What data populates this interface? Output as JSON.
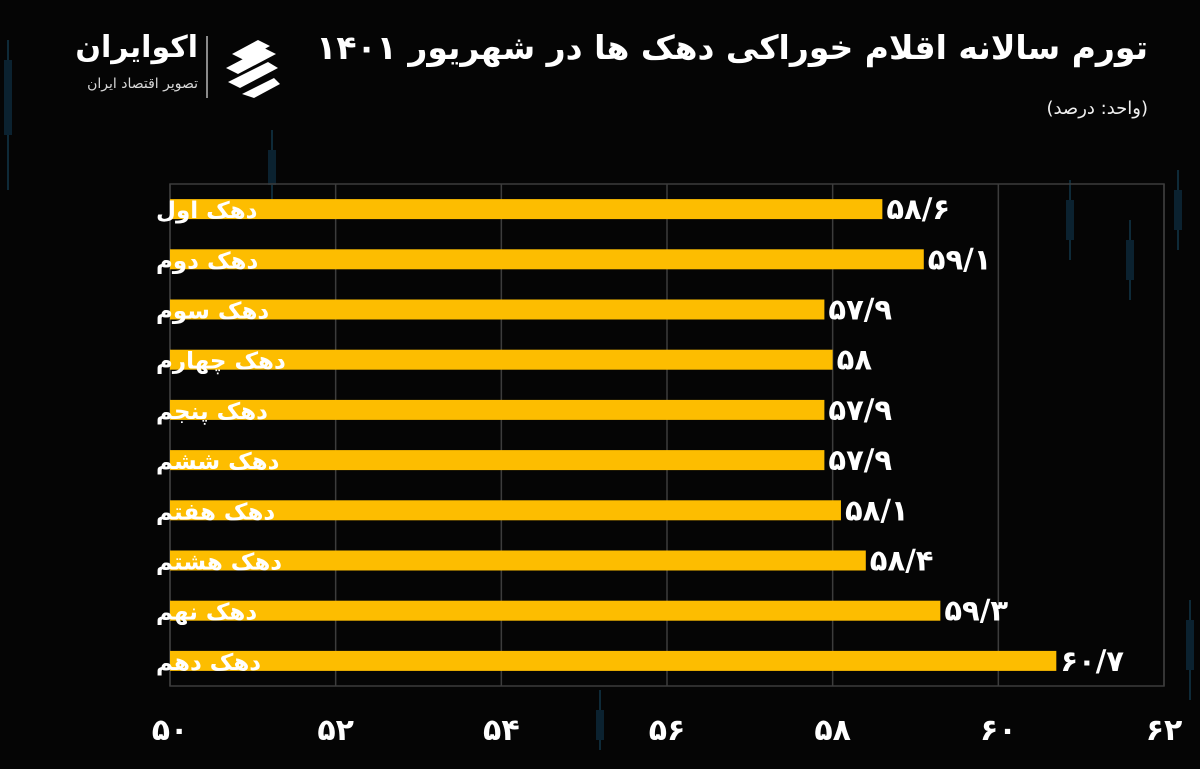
{
  "header": {
    "title": "تورم سالانه اقلام خوراکی دهک ها در شهریور ۱۴۰۱",
    "unit": "(واحد: درصد)"
  },
  "brand": {
    "name": "اکوایران",
    "tagline": "تصویر اقتصاد ایران",
    "logo_icon": "ekoiran-logo-icon"
  },
  "colors": {
    "background": "#050505",
    "bar": "#fdbd00",
    "grid": "#3c3c3c",
    "text": "#ffffff"
  },
  "chart_data": {
    "type": "bar",
    "orientation": "horizontal",
    "title": "تورم سالانه اقلام خوراکی دهک ها در شهریور ۱۴۰۱",
    "xlabel": "",
    "ylabel": "",
    "xlim": [
      50,
      62
    ],
    "xticks": [
      50,
      52,
      54,
      56,
      58,
      60,
      62
    ],
    "xtick_labels": [
      "۵۰",
      "۵۲",
      "۵۴",
      "۵۶",
      "۵۸",
      "۶۰",
      "۶۲"
    ],
    "grid": true,
    "categories": [
      "دهک اول",
      "دهک دوم",
      "دهک سوم",
      "دهک چهارم",
      "دهک پنجم",
      "دهک ششم",
      "دهک هفتم",
      "دهک هشتم",
      "دهک نهم",
      "دهک دهم"
    ],
    "values": [
      58.6,
      59.1,
      57.9,
      58,
      57.9,
      57.9,
      58.1,
      58.4,
      59.3,
      60.7
    ],
    "value_labels": [
      "۵۸/۶",
      "۵۹/۱",
      "۵۷/۹",
      "۵۸",
      "۵۷/۹",
      "۵۷/۹",
      "۵۸/۱",
      "۵۸/۴",
      "۵۹/۳",
      "۶۰/۷"
    ]
  }
}
